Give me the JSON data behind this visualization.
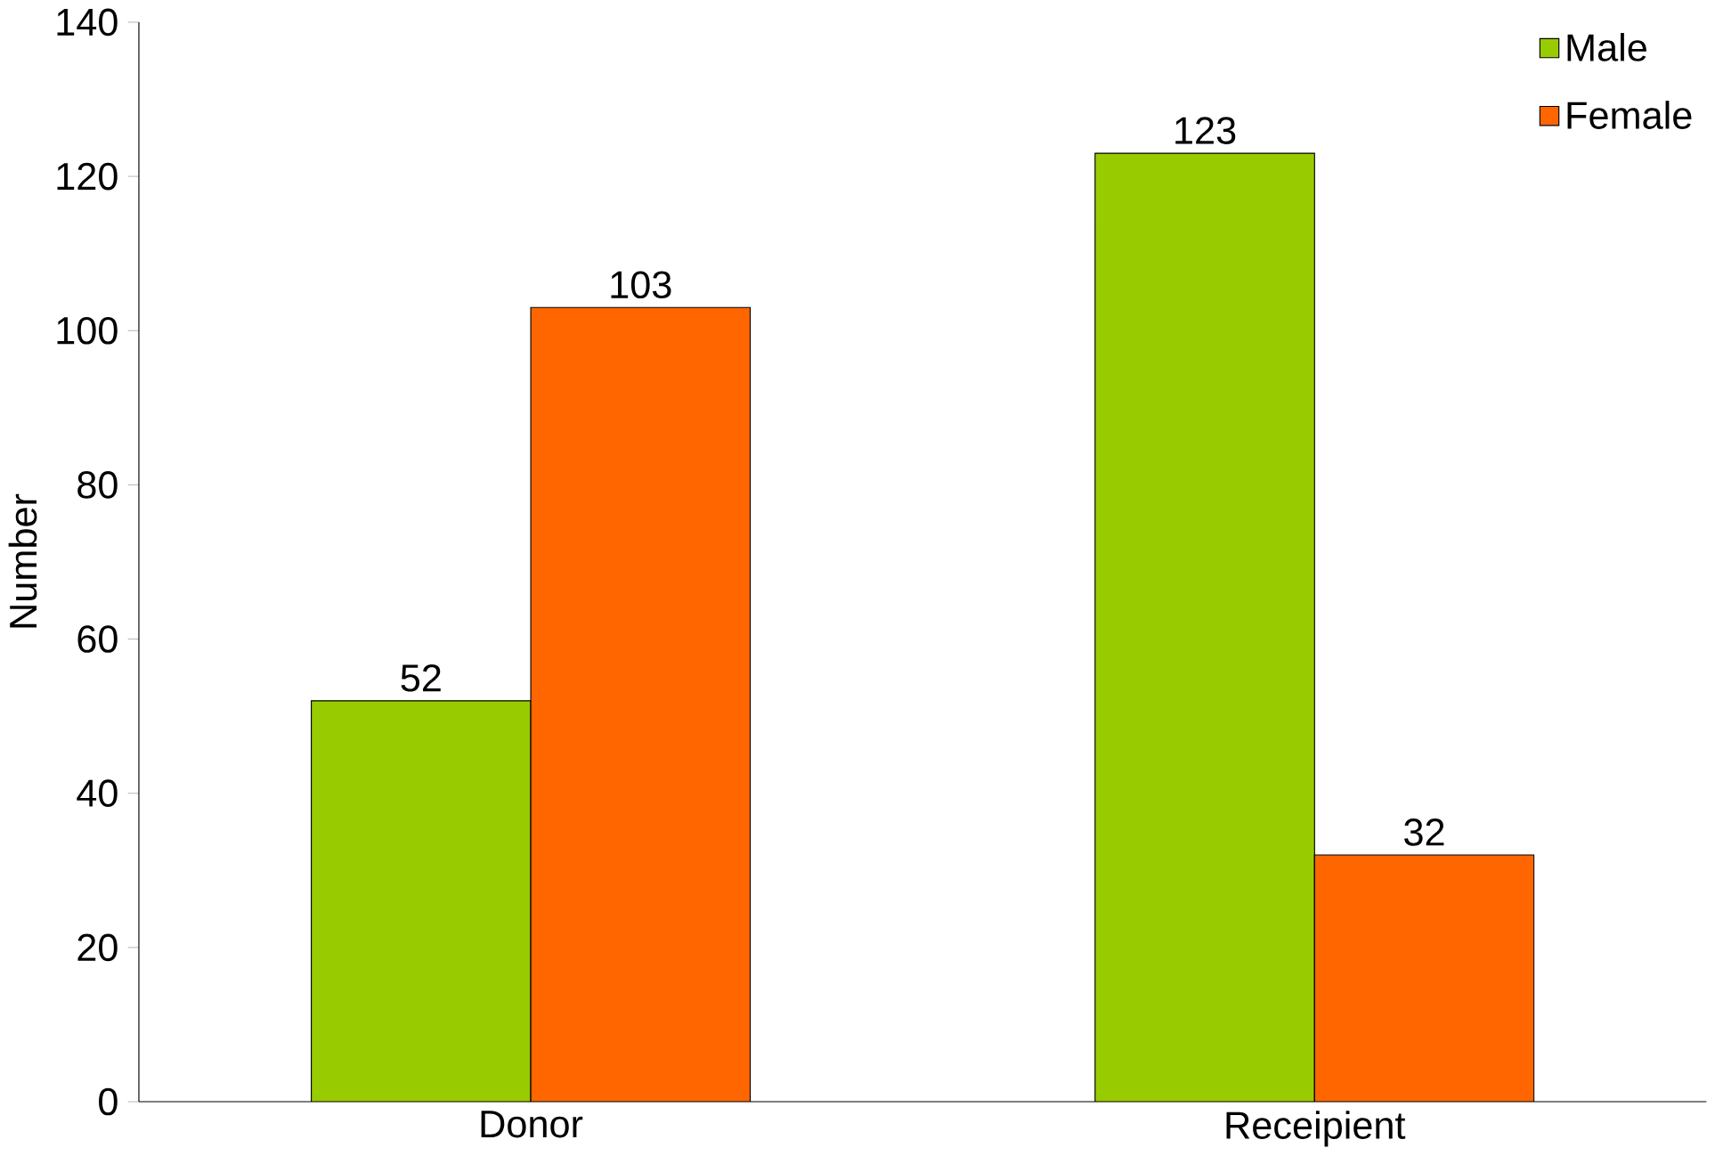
{
  "chart_data": {
    "type": "bar",
    "ylabel": "Number",
    "categories": [
      "Donor",
      "Receipient"
    ],
    "series": [
      {
        "name": "Male",
        "color": "#99cc00",
        "values": [
          52,
          123
        ]
      },
      {
        "name": "Female",
        "color": "#ff6600",
        "values": [
          103,
          32
        ]
      }
    ],
    "ylim": [
      0,
      140
    ],
    "yticks": [
      0,
      20,
      40,
      60,
      80,
      100,
      120,
      140
    ],
    "data_labels": true,
    "legend": "top right",
    "grid": false
  }
}
